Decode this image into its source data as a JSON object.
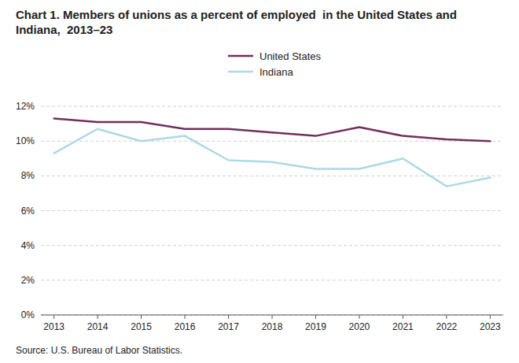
{
  "chart_data": {
    "type": "line",
    "title": "Chart 1. Members of unions as a percent of employed  in the United States and Indiana,  2013–23",
    "source": "Source: U.S. Bureau of Labor Statistics.",
    "x": [
      2013,
      2014,
      2015,
      2016,
      2017,
      2018,
      2019,
      2020,
      2021,
      2022,
      2023
    ],
    "series": [
      {
        "name": "United States",
        "color": "#722F5A",
        "values": [
          11.3,
          11.1,
          11.1,
          10.7,
          10.7,
          10.5,
          10.3,
          10.8,
          10.3,
          10.1,
          10.0
        ]
      },
      {
        "name": "Indiana",
        "color": "#ADD8E6",
        "values": [
          9.3,
          10.7,
          10.0,
          10.3,
          8.9,
          8.8,
          8.4,
          8.4,
          9.0,
          7.4,
          7.9
        ]
      }
    ],
    "xlim": [
      2012.7,
      2023.3
    ],
    "xticks": [
      2013,
      2014,
      2015,
      2016,
      2017,
      2018,
      2019,
      2020,
      2021,
      2022,
      2023
    ],
    "ylim": [
      0,
      13
    ],
    "yticks": [
      {
        "value": 0,
        "label": "0%"
      },
      {
        "value": 2,
        "label": "2%"
      },
      {
        "value": 4,
        "label": "4%"
      },
      {
        "value": 6,
        "label": "6%"
      },
      {
        "value": 8,
        "label": "8%"
      },
      {
        "value": 10,
        "label": "10%"
      },
      {
        "value": 12,
        "label": "12%"
      }
    ],
    "grid": true,
    "legend": "top"
  }
}
